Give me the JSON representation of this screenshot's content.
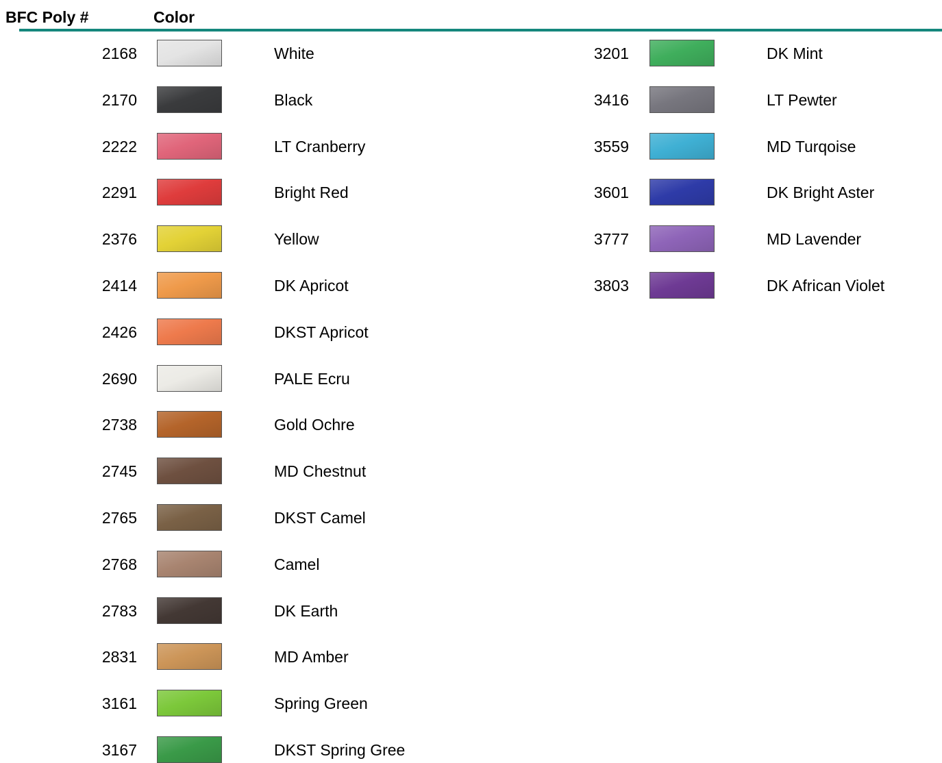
{
  "header": {
    "number": "BFC Poly #",
    "color": "Color"
  },
  "columns": [
    {
      "rows": [
        {
          "number": "2168",
          "swatch": "#e4e4e4",
          "name": "White"
        },
        {
          "number": "2170",
          "swatch": "#3a3b3d",
          "name": "Black"
        },
        {
          "number": "2222",
          "swatch": "#e0657a",
          "name": "LT Cranberry"
        },
        {
          "number": "2291",
          "swatch": "#df3c3c",
          "name": "Bright Red"
        },
        {
          "number": "2376",
          "swatch": "#e3d236",
          "name": "Yellow"
        },
        {
          "number": "2414",
          "swatch": "#ef9a4a",
          "name": "DK Apricot"
        },
        {
          "number": "2426",
          "swatch": "#ee7a4c",
          "name": "DKST Apricot"
        },
        {
          "number": "2690",
          "swatch": "#ecebe6",
          "name": "PALE Ecru"
        },
        {
          "number": "2738",
          "swatch": "#b4642a",
          "name": "Gold Ochre"
        },
        {
          "number": "2745",
          "swatch": "#6e5040",
          "name": "MD Chestnut"
        },
        {
          "number": "2765",
          "swatch": "#7a6146",
          "name": "DKST Camel"
        },
        {
          "number": "2768",
          "swatch": "#a88470",
          "name": "Camel"
        },
        {
          "number": "2783",
          "swatch": "#433834",
          "name": "DK Earth"
        },
        {
          "number": "2831",
          "swatch": "#cc9558",
          "name": "MD Amber"
        },
        {
          "number": "3161",
          "swatch": "#7cc83a",
          "name": "Spring Green"
        },
        {
          "number": "3167",
          "swatch": "#3a9a48",
          "name": "DKST Spring Gree"
        }
      ]
    },
    {
      "rows": [
        {
          "number": "3201",
          "swatch": "#3fae5c",
          "name": "DK Mint"
        },
        {
          "number": "3416",
          "swatch": "#77767e",
          "name": "LT Pewter"
        },
        {
          "number": "3559",
          "swatch": "#3fb0d4",
          "name": "MD Turqoise"
        },
        {
          "number": "3601",
          "swatch": "#2e3ba8",
          "name": "DK Bright Aster"
        },
        {
          "number": "3777",
          "swatch": "#8e64b8",
          "name": "MD Lavender"
        },
        {
          "number": "3803",
          "swatch": "#6e3a94",
          "name": "DK African Violet"
        }
      ]
    }
  ]
}
